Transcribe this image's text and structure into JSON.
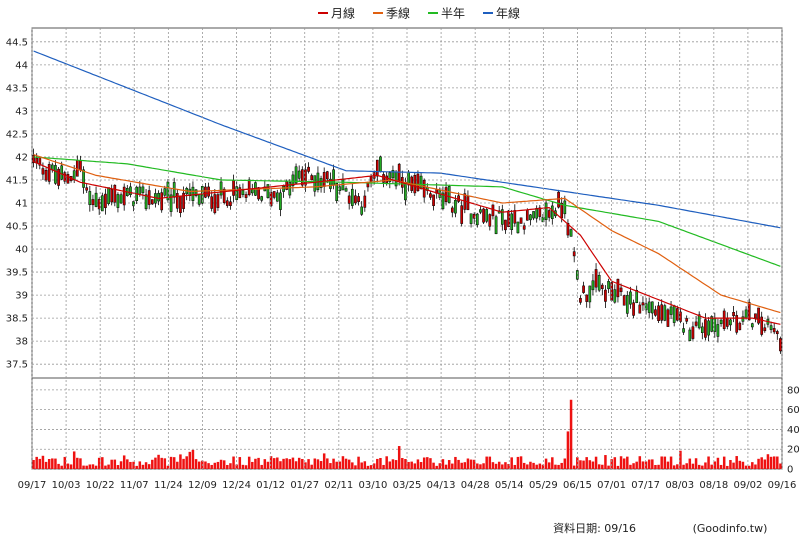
{
  "chart_data": {
    "type": "candlestick-volume",
    "legend": {
      "placement": "top-center",
      "items": [
        {
          "label": "月線",
          "color": "#cc0000"
        },
        {
          "label": "季線",
          "color": "#e06010"
        },
        {
          "label": "半年",
          "color": "#22bb22"
        },
        {
          "label": "年線",
          "color": "#1f5fbf"
        }
      ]
    },
    "price_axis": {
      "min": 37.2,
      "max": 44.8,
      "ticks": [
        "37.5",
        "38",
        "38.5",
        "39",
        "39.5",
        "40",
        "40.5",
        "41",
        "41.5",
        "42",
        "42.5",
        "43",
        "43.5",
        "44",
        "44.5"
      ]
    },
    "volume_axis": {
      "min": 0,
      "max": 92,
      "ticks": [
        "0",
        "20",
        "40",
        "60",
        "80"
      ]
    },
    "x_labels": [
      "09/17",
      "10/03",
      "10/22",
      "11/07",
      "11/24",
      "12/09",
      "12/24",
      "01/12",
      "01/27",
      "02/11",
      "03/10",
      "03/25",
      "04/13",
      "04/28",
      "05/14",
      "05/29",
      "06/15",
      "07/01",
      "07/17",
      "08/03",
      "08/18",
      "09/02",
      "09/16"
    ],
    "num_days": 240,
    "moving_averages": [
      {
        "name": "年線",
        "color": "#1f5fbf",
        "points": [
          [
            0,
            44.3
          ],
          [
            60,
            42.7
          ],
          [
            100,
            41.7
          ],
          [
            130,
            41.65
          ],
          [
            165,
            41.3
          ],
          [
            200,
            40.95
          ],
          [
            240,
            40.45
          ]
        ]
      },
      {
        "name": "半年",
        "color": "#22bb22",
        "points": [
          [
            0,
            42.0
          ],
          [
            30,
            41.85
          ],
          [
            60,
            41.5
          ],
          [
            100,
            41.45
          ],
          [
            150,
            41.35
          ],
          [
            170,
            40.95
          ],
          [
            200,
            40.6
          ],
          [
            220,
            40.1
          ],
          [
            240,
            39.6
          ]
        ]
      },
      {
        "name": "季線",
        "color": "#e06010",
        "points": [
          [
            0,
            42.05
          ],
          [
            20,
            41.6
          ],
          [
            50,
            41.25
          ],
          [
            90,
            41.35
          ],
          [
            115,
            41.5
          ],
          [
            150,
            41.0
          ],
          [
            170,
            41.1
          ],
          [
            185,
            40.4
          ],
          [
            200,
            39.9
          ],
          [
            220,
            39.0
          ],
          [
            240,
            38.6
          ]
        ]
      },
      {
        "name": "月線",
        "color": "#cc0000",
        "points": [
          [
            0,
            41.9
          ],
          [
            15,
            41.45
          ],
          [
            40,
            41.1
          ],
          [
            90,
            41.45
          ],
          [
            110,
            41.6
          ],
          [
            125,
            41.3
          ],
          [
            150,
            40.8
          ],
          [
            165,
            40.9
          ],
          [
            175,
            40.3
          ],
          [
            185,
            39.3
          ],
          [
            200,
            38.9
          ],
          [
            215,
            38.5
          ],
          [
            230,
            38.5
          ],
          [
            240,
            38.35
          ]
        ]
      }
    ],
    "candle_anchors": [
      [
        0,
        41.9
      ],
      [
        10,
        41.5
      ],
      [
        15,
        41.8
      ],
      [
        18,
        41.0
      ],
      [
        25,
        41.15
      ],
      [
        40,
        41.1
      ],
      [
        60,
        41.15
      ],
      [
        80,
        41.2
      ],
      [
        85,
        41.6
      ],
      [
        95,
        41.5
      ],
      [
        105,
        41.0
      ],
      [
        110,
        41.7
      ],
      [
        120,
        41.4
      ],
      [
        130,
        41.1
      ],
      [
        145,
        40.7
      ],
      [
        160,
        40.6
      ],
      [
        170,
        41.0
      ],
      [
        175,
        39.0
      ],
      [
        180,
        39.2
      ],
      [
        190,
        38.9
      ],
      [
        200,
        38.65
      ],
      [
        210,
        38.3
      ],
      [
        220,
        38.4
      ],
      [
        230,
        38.5
      ],
      [
        240,
        38.05
      ]
    ],
    "volume_spikes": [
      {
        "day": 172,
        "value": 70
      },
      {
        "day": 171,
        "value": 38
      }
    ]
  },
  "footer": {
    "date_label": "資料日期: 09/16",
    "source": "(Goodinfo.tw)"
  }
}
